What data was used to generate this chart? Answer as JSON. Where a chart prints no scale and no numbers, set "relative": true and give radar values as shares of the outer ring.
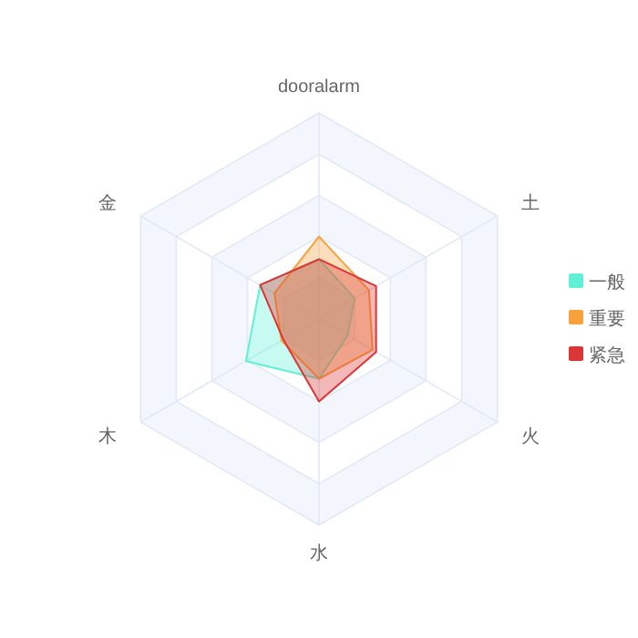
{
  "chart_data": {
    "type": "radar",
    "relative": true,
    "legend": "right",
    "categories": [
      "dooralarm",
      "土",
      "火",
      "水",
      "木",
      "金"
    ],
    "series": [
      {
        "name": "一般",
        "color": "#5ff0d6",
        "values": [
          0.29,
          0.2,
          0.16,
          0.29,
          0.41,
          0.33
        ]
      },
      {
        "name": "重要",
        "color": "#f7a03c",
        "values": [
          0.4,
          0.28,
          0.3,
          0.29,
          0.21,
          0.25
        ]
      },
      {
        "name": "紧急",
        "color": "#dc3535",
        "values": [
          0.29,
          0.32,
          0.32,
          0.4,
          0.2,
          0.33
        ]
      }
    ]
  }
}
